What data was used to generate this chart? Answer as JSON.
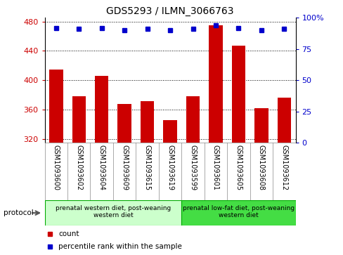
{
  "title": "GDS5293 / ILMN_3066763",
  "samples": [
    "GSM1093600",
    "GSM1093602",
    "GSM1093604",
    "GSM1093609",
    "GSM1093615",
    "GSM1093619",
    "GSM1093599",
    "GSM1093601",
    "GSM1093605",
    "GSM1093608",
    "GSM1093612"
  ],
  "counts": [
    415,
    378,
    406,
    368,
    372,
    346,
    378,
    475,
    447,
    362,
    376
  ],
  "percentiles": [
    92,
    91,
    92,
    90,
    91,
    90,
    91,
    94,
    92,
    90,
    91
  ],
  "ylim_left": [
    315,
    485
  ],
  "ylim_right": [
    0,
    100
  ],
  "yticks_left": [
    320,
    360,
    400,
    440,
    480
  ],
  "yticks_right": [
    0,
    25,
    50,
    75,
    100
  ],
  "bar_color": "#cc0000",
  "dot_color": "#0000cc",
  "protocol_groups": [
    {
      "label": "prenatal western diet, post-weaning\nwestern diet",
      "n_samples": 6,
      "color": "#ccffcc",
      "edgecolor": "#00aa00"
    },
    {
      "label": "prenatal low-fat diet, post-weaning\nwestern diet",
      "n_samples": 5,
      "color": "#44dd44",
      "edgecolor": "#00aa00"
    }
  ],
  "legend_items": [
    {
      "color": "#cc0000",
      "label": "count"
    },
    {
      "color": "#0000cc",
      "label": "percentile rank within the sample"
    }
  ],
  "protocol_label": "protocol",
  "n_samples": 11,
  "group1_n": 6,
  "group2_n": 5
}
